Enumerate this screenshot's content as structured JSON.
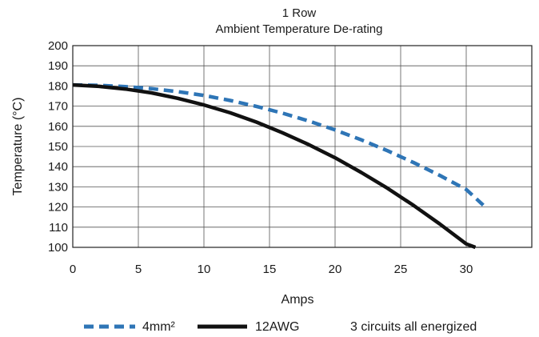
{
  "chart_data": {
    "type": "line",
    "title": "1 Row",
    "subtitle": "Ambient Temperature De-rating",
    "xlabel": "Amps",
    "ylabel": "Temperature (°C)",
    "xlim": [
      0,
      35
    ],
    "ylim": [
      100,
      200
    ],
    "xticks": [
      0,
      5,
      10,
      15,
      20,
      25,
      30
    ],
    "xtick_labels": [
      "0",
      "5",
      "10",
      "15",
      "20",
      "25",
      "30"
    ],
    "yticks": [
      100,
      110,
      120,
      130,
      140,
      150,
      160,
      170,
      180,
      190,
      200
    ],
    "ytick_labels": [
      "100",
      "110",
      "120",
      "130",
      "140",
      "150",
      "160",
      "170",
      "180",
      "190",
      "200"
    ],
    "grid": true,
    "legend_position": "bottom",
    "legend_note": "3 circuits all energized",
    "series": [
      {
        "name": "4mm²",
        "color": "#2e75b6",
        "style": "dashed",
        "x": [
          0,
          2,
          4,
          6,
          8,
          10,
          12,
          14,
          16,
          18,
          20,
          22,
          24,
          26,
          28,
          30,
          31.3
        ],
        "y": [
          180.5,
          180.3,
          179.7,
          178.7,
          177.2,
          175.3,
          172.8,
          169.9,
          166.5,
          162.6,
          158.2,
          153.3,
          147.9,
          142,
          135.6,
          128.7,
          120.9
        ]
      },
      {
        "name": "12AWG",
        "color": "#111111",
        "style": "solid",
        "x": [
          0,
          2,
          4,
          6,
          8,
          10,
          12,
          14,
          16,
          18,
          20,
          22,
          24,
          26,
          28,
          30,
          30.7
        ],
        "y": [
          180.5,
          179.8,
          178.5,
          176.6,
          173.9,
          170.6,
          166.7,
          162.1,
          156.8,
          150.9,
          144.4,
          137.1,
          129.3,
          120.7,
          111.5,
          101.7,
          100
        ]
      }
    ]
  }
}
